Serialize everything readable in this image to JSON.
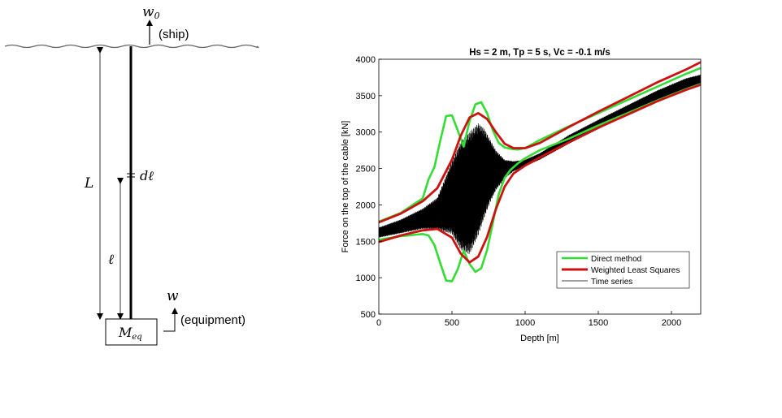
{
  "diagram": {
    "w0": "w",
    "w0_sub": "0",
    "ship_label": "(ship)",
    "L_label": "L",
    "dl_label": "dℓ",
    "l_label": "ℓ",
    "w_label": "w",
    "equipment_label": "(equipment)",
    "mass_label": "M",
    "mass_sub": "eq"
  },
  "chart_data": {
    "type": "line",
    "title": "Hs = 2 m, Tp = 5 s, Vc = -0.1 m/s",
    "xlabel": "Depth [m]",
    "ylabel": "Force on the top of the cable [kN]",
    "xlim": [
      0,
      2200
    ],
    "ylim": [
      500,
      4000
    ],
    "xticks": [
      0,
      500,
      1000,
      1500,
      2000
    ],
    "yticks": [
      500,
      1000,
      1500,
      2000,
      2500,
      3000,
      3500,
      4000
    ],
    "legend_position": "lower-right",
    "colors": {
      "direct": "#33dd33",
      "wls": "#cc1111",
      "time_series": "#000000"
    },
    "series": [
      {
        "name": "Direct method",
        "upper": {
          "x": [
            0,
            150,
            300,
            340,
            380,
            420,
            460,
            500,
            540,
            580,
            620,
            660,
            700,
            740,
            780,
            820,
            860,
            900,
            950,
            1000,
            1100,
            1300,
            1500,
            1700,
            1900,
            2100,
            2200
          ],
          "y": [
            1770,
            1890,
            2090,
            2350,
            2520,
            2880,
            3220,
            3230,
            3020,
            2800,
            3150,
            3380,
            3410,
            3260,
            3020,
            2850,
            2790,
            2770,
            2760,
            2780,
            2890,
            3080,
            3260,
            3440,
            3620,
            3800,
            3880
          ]
        },
        "lower": {
          "x": [
            0,
            150,
            300,
            340,
            380,
            420,
            460,
            500,
            540,
            580,
            620,
            660,
            700,
            740,
            780,
            820,
            860,
            900,
            950,
            1000,
            1100,
            1300,
            1500,
            1700,
            1900,
            2100,
            2200
          ],
          "y": [
            1520,
            1570,
            1600,
            1580,
            1450,
            1200,
            960,
            950,
            1120,
            1370,
            1190,
            1080,
            1130,
            1380,
            1760,
            2150,
            2370,
            2480,
            2570,
            2640,
            2750,
            2910,
            3090,
            3260,
            3430,
            3590,
            3660
          ]
        }
      },
      {
        "name": "Weighted Least Squares",
        "upper": {
          "x": [
            0,
            150,
            300,
            400,
            500,
            560,
            620,
            680,
            740,
            800,
            860,
            920,
            1000,
            1100,
            1300,
            1500,
            1700,
            1900,
            2100,
            2200
          ],
          "y": [
            1760,
            1880,
            2050,
            2230,
            2620,
            2950,
            3200,
            3260,
            3180,
            3000,
            2840,
            2780,
            2780,
            2850,
            3070,
            3280,
            3480,
            3680,
            3860,
            3960
          ]
        },
        "lower": {
          "x": [
            0,
            150,
            300,
            400,
            500,
            560,
            620,
            680,
            740,
            800,
            860,
            920,
            1000,
            1100,
            1300,
            1500,
            1700,
            1900,
            2100,
            2200
          ],
          "y": [
            1490,
            1580,
            1650,
            1670,
            1550,
            1330,
            1210,
            1290,
            1560,
            1940,
            2250,
            2430,
            2540,
            2650,
            2860,
            3060,
            3240,
            3420,
            3580,
            3650
          ]
        }
      },
      {
        "name": "Time series",
        "upper": {
          "x": [
            0,
            150,
            300,
            400,
            500,
            560,
            620,
            680,
            720,
            760,
            800,
            860,
            920,
            1000,
            1100,
            1300,
            1500,
            1700,
            1900,
            2100,
            2200
          ],
          "y": [
            1690,
            1800,
            1950,
            2100,
            2600,
            2870,
            3000,
            3120,
            3050,
            2900,
            2750,
            2620,
            2600,
            2620,
            2710,
            2960,
            3170,
            3370,
            3570,
            3740,
            3790
          ]
        },
        "lower": {
          "x": [
            0,
            150,
            300,
            400,
            500,
            560,
            620,
            680,
            720,
            760,
            800,
            860,
            920,
            1000,
            1100,
            1300,
            1500,
            1700,
            1900,
            2100,
            2200
          ],
          "y": [
            1550,
            1610,
            1670,
            1660,
            1600,
            1380,
            1320,
            1580,
            1820,
            2030,
            2200,
            2360,
            2460,
            2530,
            2620,
            2840,
            3040,
            3240,
            3430,
            3590,
            3650
          ]
        }
      }
    ]
  }
}
